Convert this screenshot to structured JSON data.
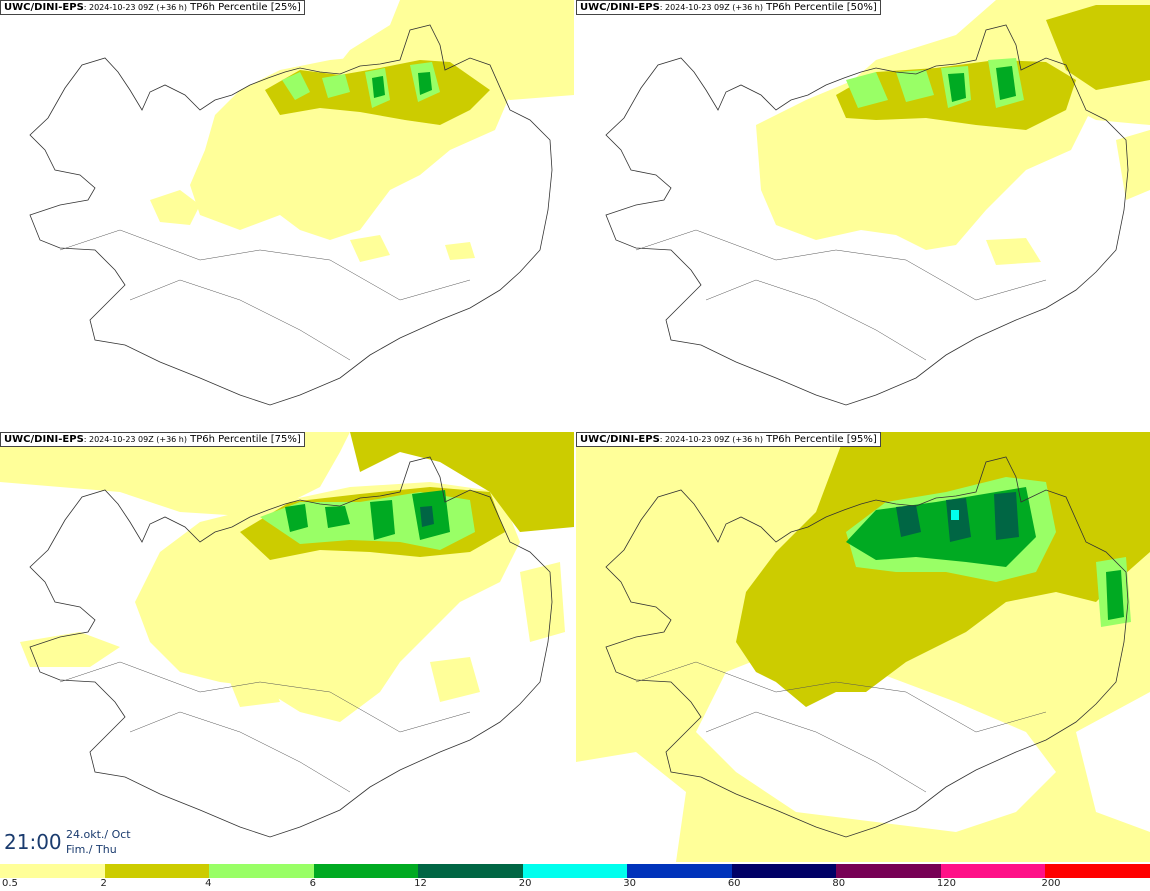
{
  "panels": [
    {
      "model": "UWC/DINI-EPS",
      "meta": ": 2024-10-23 09Z (+36 h)",
      "title": " TP6h Percentile [25%]"
    },
    {
      "model": "UWC/DINI-EPS",
      "meta": ": 2024-10-23 09Z (+36 h)",
      "title": " TP6h Percentile [50%]"
    },
    {
      "model": "UWC/DINI-EPS",
      "meta": ": 2024-10-23 09Z (+36 h)",
      "title": " TP6h Percentile [75%]"
    },
    {
      "model": "UWC/DINI-EPS",
      "meta": ": 2024-10-23 09Z (+36 h)",
      "title": " TP6h Percentile [95%]"
    }
  ],
  "valid_time": {
    "time": "21:00",
    "date_line1": "24.okt./ Oct",
    "date_line2": "Fim./ Thu"
  },
  "legend": {
    "ticks": [
      "0.5",
      "2",
      "4",
      "6",
      "12",
      "20",
      "30",
      "60",
      "80",
      "120",
      "200"
    ],
    "colors": [
      "#ffff99",
      "#cccc00",
      "#99ff66",
      "#00aa22",
      "#006644",
      "#00ffee",
      "#0033bb",
      "#000066",
      "#770055",
      "#ff1188",
      "#ff0000"
    ]
  },
  "map_colors": {
    "light_yellow": "#ffff99",
    "olive": "#cccc00",
    "light_green": "#99ff66",
    "green": "#00aa22",
    "dark_green": "#006644",
    "cyan": "#00ffee",
    "coastline": "#333333"
  }
}
